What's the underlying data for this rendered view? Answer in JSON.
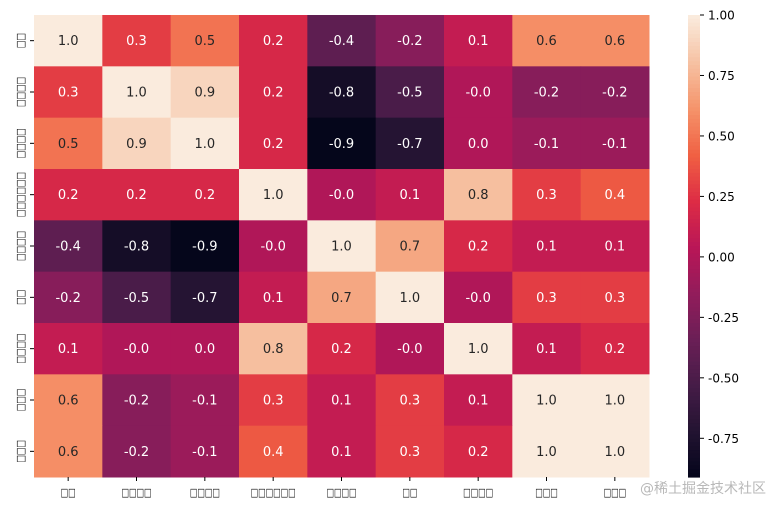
{
  "chart_data": {
    "type": "heatmap",
    "title": "",
    "xlabel": "",
    "ylabel": "",
    "row_labels": [
      "□□",
      "□□□□",
      "□□□□",
      "□□□□□□",
      "□□□□",
      "□□",
      "□□□□",
      "□□□",
      "□□□"
    ],
    "col_labels": [
      "□□",
      "□□□□",
      "□□□□",
      "□□□□□□",
      "□□□□",
      "□□",
      "□□□□",
      "□□□",
      "□□□"
    ],
    "values": [
      [
        "1.0",
        "0.3",
        "0.5",
        "0.2",
        "-0.4",
        "-0.2",
        "0.1",
        "0.6",
        "0.6"
      ],
      [
        "0.3",
        "1.0",
        "0.9",
        "0.2",
        "-0.8",
        "-0.5",
        "-0.0",
        "-0.2",
        "-0.2"
      ],
      [
        "0.5",
        "0.9",
        "1.0",
        "0.2",
        "-0.9",
        "-0.7",
        "0.0",
        "-0.1",
        "-0.1"
      ],
      [
        "0.2",
        "0.2",
        "0.2",
        "1.0",
        "-0.0",
        "0.1",
        "0.8",
        "0.3",
        "0.4"
      ],
      [
        "-0.4",
        "-0.8",
        "-0.9",
        "-0.0",
        "1.0",
        "0.7",
        "0.2",
        "0.1",
        "0.1"
      ],
      [
        "-0.2",
        "-0.5",
        "-0.7",
        "0.1",
        "0.7",
        "1.0",
        "-0.0",
        "0.3",
        "0.3"
      ],
      [
        "0.1",
        "-0.0",
        "0.0",
        "0.8",
        "0.2",
        "-0.0",
        "1.0",
        "0.1",
        "0.2"
      ],
      [
        "0.6",
        "-0.2",
        "-0.1",
        "0.3",
        "0.1",
        "0.3",
        "0.1",
        "1.0",
        "1.0"
      ],
      [
        "0.6",
        "-0.2",
        "-0.1",
        "0.4",
        "0.1",
        "0.3",
        "0.2",
        "1.0",
        "1.0"
      ]
    ],
    "colormap": "rocket",
    "colorbar": {
      "range": [
        -0.91,
        1.0
      ],
      "ticks": [
        "1.00",
        "0.75",
        "0.50",
        "0.25",
        "0.00",
        "-0.25",
        "-0.50",
        "-0.75"
      ]
    },
    "grid": false
  },
  "watermark": "@稀土掘金技术社区"
}
